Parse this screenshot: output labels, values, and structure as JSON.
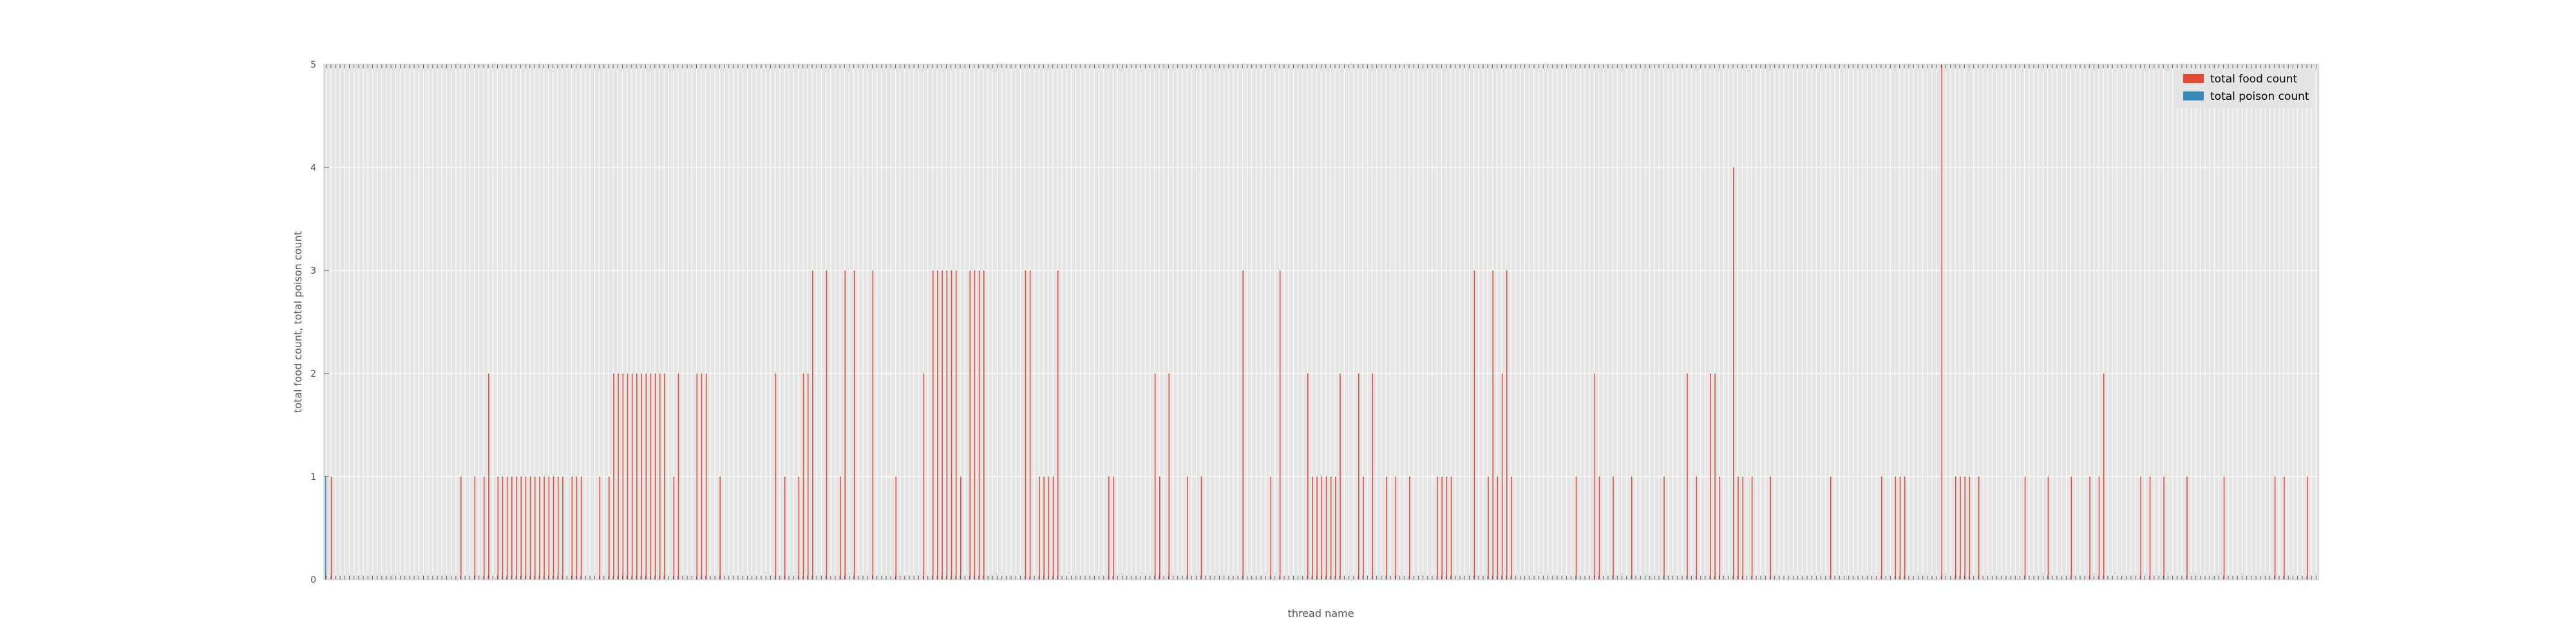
{
  "chart_data": {
    "type": "bar",
    "xlabel": "thread name",
    "ylabel": "total food count, total poison count",
    "ylim": [
      0,
      5
    ],
    "yticks": [
      "0",
      "1",
      "2",
      "3",
      "4",
      "5"
    ],
    "grid": true,
    "legend_position": "top-right",
    "colors": {
      "food": "#E24A33",
      "poison": "#348ABD",
      "plot_bg": "#E5E5E5",
      "grid": "#FFFFFF",
      "tick_text": "#555555"
    },
    "series": [
      {
        "name": "total food count",
        "color": "#E24A33",
        "values": [
          0,
          1,
          0,
          0,
          0,
          0,
          0,
          0,
          0,
          0,
          0,
          0,
          0,
          0,
          0,
          0,
          0,
          0,
          0,
          0,
          0,
          0,
          0,
          0,
          0,
          0,
          0,
          0,
          0,
          1,
          0,
          0,
          1,
          0,
          1,
          2,
          0,
          1,
          1,
          1,
          1,
          1,
          1,
          1,
          1,
          1,
          1,
          1,
          1,
          1,
          1,
          1,
          0,
          1,
          1,
          1,
          0,
          0,
          0,
          1,
          0,
          1,
          2,
          2,
          2,
          2,
          2,
          2,
          2,
          2,
          2,
          2,
          2,
          2,
          0,
          1,
          2,
          0,
          0,
          0,
          2,
          2,
          2,
          0,
          0,
          1,
          0,
          0,
          0,
          0,
          0,
          0,
          0,
          0,
          0,
          0,
          0,
          2,
          0,
          1,
          0,
          0,
          1,
          2,
          2,
          3,
          0,
          0,
          3,
          0,
          0,
          1,
          3,
          0,
          3,
          0,
          0,
          0,
          3,
          0,
          0,
          0,
          0,
          1,
          0,
          0,
          0,
          0,
          0,
          2,
          0,
          3,
          3,
          3,
          3,
          3,
          3,
          1,
          0,
          3,
          3,
          3,
          3,
          0,
          0,
          0,
          0,
          0,
          0,
          0,
          0,
          3,
          3,
          0,
          1,
          1,
          1,
          1,
          3,
          0,
          0,
          0,
          0,
          0,
          0,
          0,
          0,
          0,
          0,
          1,
          1,
          0,
          0,
          0,
          0,
          0,
          0,
          0,
          0,
          2,
          1,
          0,
          2,
          0,
          0,
          0,
          1,
          0,
          0,
          1,
          0,
          0,
          0,
          0,
          0,
          0,
          0,
          0,
          3,
          0,
          0,
          0,
          0,
          0,
          1,
          0,
          3,
          0,
          0,
          0,
          0,
          0,
          2,
          1,
          1,
          1,
          1,
          1,
          1,
          2,
          0,
          0,
          0,
          2,
          1,
          0,
          2,
          0,
          0,
          1,
          0,
          1,
          0,
          0,
          1,
          0,
          0,
          0,
          0,
          0,
          1,
          1,
          1,
          1,
          0,
          0,
          0,
          0,
          3,
          0,
          0,
          1,
          3,
          1,
          2,
          3,
          1,
          0,
          0,
          0,
          0,
          0,
          0,
          0,
          0,
          0,
          0,
          0,
          0,
          0,
          1,
          0,
          0,
          0,
          2,
          1,
          0,
          0,
          1,
          0,
          0,
          0,
          1,
          0,
          0,
          0,
          0,
          0,
          0,
          1,
          0,
          0,
          0,
          0,
          2,
          0,
          1,
          0,
          0,
          2,
          2,
          1,
          0,
          0,
          4,
          1,
          1,
          0,
          1,
          0,
          0,
          0,
          1,
          0,
          0,
          0,
          0,
          0,
          0,
          0,
          0,
          0,
          0,
          0,
          0,
          1,
          0,
          0,
          0,
          0,
          0,
          0,
          0,
          0,
          0,
          0,
          1,
          0,
          0,
          1,
          1,
          1,
          0,
          0,
          0,
          0,
          0,
          0,
          0,
          5,
          0,
          0,
          1,
          1,
          1,
          1,
          0,
          1,
          0,
          0,
          0,
          0,
          0,
          0,
          0,
          0,
          0,
          1,
          0,
          0,
          0,
          0,
          1,
          0,
          0,
          0,
          0,
          1,
          0,
          0,
          0,
          1,
          0,
          1,
          2,
          0,
          0,
          0,
          0,
          0,
          0,
          0,
          1,
          0,
          1,
          0,
          0,
          1,
          0,
          0,
          0,
          0,
          1,
          0,
          0,
          0,
          0,
          0,
          0,
          0,
          1,
          0,
          0,
          0,
          0,
          0,
          0,
          0,
          0,
          0,
          0,
          1,
          0,
          1,
          0,
          0,
          0,
          0,
          1,
          0,
          0
        ]
      },
      {
        "name": "total poison count",
        "color": "#348ABD",
        "values": [
          1,
          0,
          0,
          0,
          0,
          0,
          0,
          0,
          0,
          0,
          0,
          0,
          0,
          0,
          0,
          0,
          0,
          0,
          0,
          0,
          0,
          0,
          0,
          0,
          0,
          0,
          0,
          0,
          0,
          0,
          0,
          0,
          0,
          0,
          0,
          0,
          0,
          0,
          0,
          0,
          0,
          0,
          0,
          0,
          0,
          0,
          0,
          0,
          0,
          0,
          0,
          0,
          0,
          0,
          0,
          0,
          0,
          0,
          0,
          0,
          0,
          0,
          0,
          0,
          0,
          0,
          0,
          0,
          0,
          0,
          0,
          0,
          0,
          0,
          0,
          0,
          0,
          0,
          0,
          0,
          0,
          0,
          0,
          0,
          0,
          0,
          0,
          0,
          0,
          0,
          0,
          0,
          0,
          0,
          0,
          0,
          0,
          0,
          0,
          0,
          0,
          0,
          0,
          0,
          0,
          0,
          0,
          0,
          0,
          0,
          0,
          0,
          0,
          0,
          0,
          0,
          0,
          0,
          0,
          0,
          0,
          0,
          0,
          0,
          0,
          0,
          0,
          0,
          0,
          0,
          0,
          0,
          0,
          0,
          0,
          0,
          0,
          0,
          0,
          0,
          0,
          0,
          0,
          0,
          0,
          0,
          0,
          0,
          0,
          0,
          0,
          0,
          0,
          0,
          0,
          0,
          0,
          0,
          0,
          0,
          0,
          0,
          0,
          0,
          0,
          0,
          0,
          0,
          0,
          0,
          0,
          0,
          0,
          0,
          0,
          0,
          0,
          0,
          0,
          0,
          0,
          0,
          0,
          0,
          0,
          0,
          0,
          0,
          0,
          0,
          0,
          0,
          0,
          0,
          0,
          0,
          0,
          0,
          0,
          0,
          0,
          0,
          0,
          0,
          0,
          0,
          0,
          0,
          0,
          0,
          0,
          0,
          0,
          0,
          0,
          0,
          0,
          0,
          0,
          0,
          0,
          0,
          0,
          0,
          0,
          0,
          0,
          0,
          0,
          0,
          0,
          0,
          0,
          0,
          0,
          0,
          0,
          0,
          0,
          0,
          0,
          0,
          0,
          0,
          0,
          0,
          0,
          0,
          0,
          0,
          0,
          0,
          0,
          0,
          0,
          0,
          0,
          0,
          0,
          0,
          0,
          0,
          0,
          0,
          0,
          0,
          0,
          0,
          0,
          0,
          0,
          0,
          0,
          0,
          0,
          0,
          0,
          0,
          0,
          0,
          0,
          0,
          0,
          0,
          0,
          0,
          0,
          0,
          0,
          0,
          0,
          0,
          0,
          0,
          0,
          0,
          0,
          0,
          0,
          0,
          0,
          0,
          0,
          0,
          0,
          0,
          0,
          0,
          0,
          0,
          0,
          0,
          0,
          0,
          0,
          0,
          0,
          0,
          0,
          0,
          0,
          0,
          0,
          0,
          0,
          0,
          0,
          0,
          0,
          0,
          0,
          0,
          0,
          0,
          0,
          0,
          0,
          0,
          0,
          0,
          0,
          0,
          0,
          0,
          0,
          0,
          0,
          0,
          0,
          0,
          0,
          0,
          0,
          0,
          0,
          0,
          0,
          0,
          0,
          0,
          0,
          0,
          0,
          0,
          0,
          0,
          0,
          0,
          0,
          0,
          0,
          0,
          0,
          0,
          0,
          0,
          0,
          0,
          0,
          0,
          0,
          0,
          0,
          0,
          0,
          0,
          0,
          0,
          0,
          0,
          0,
          0,
          0,
          0,
          0,
          0,
          0,
          0,
          0,
          0,
          0,
          0,
          0,
          0,
          0,
          0,
          0,
          0,
          0,
          0,
          0,
          0,
          0,
          0,
          0,
          0,
          0,
          0,
          0,
          0,
          0,
          0,
          0,
          0,
          0,
          0,
          0
        ]
      }
    ]
  }
}
